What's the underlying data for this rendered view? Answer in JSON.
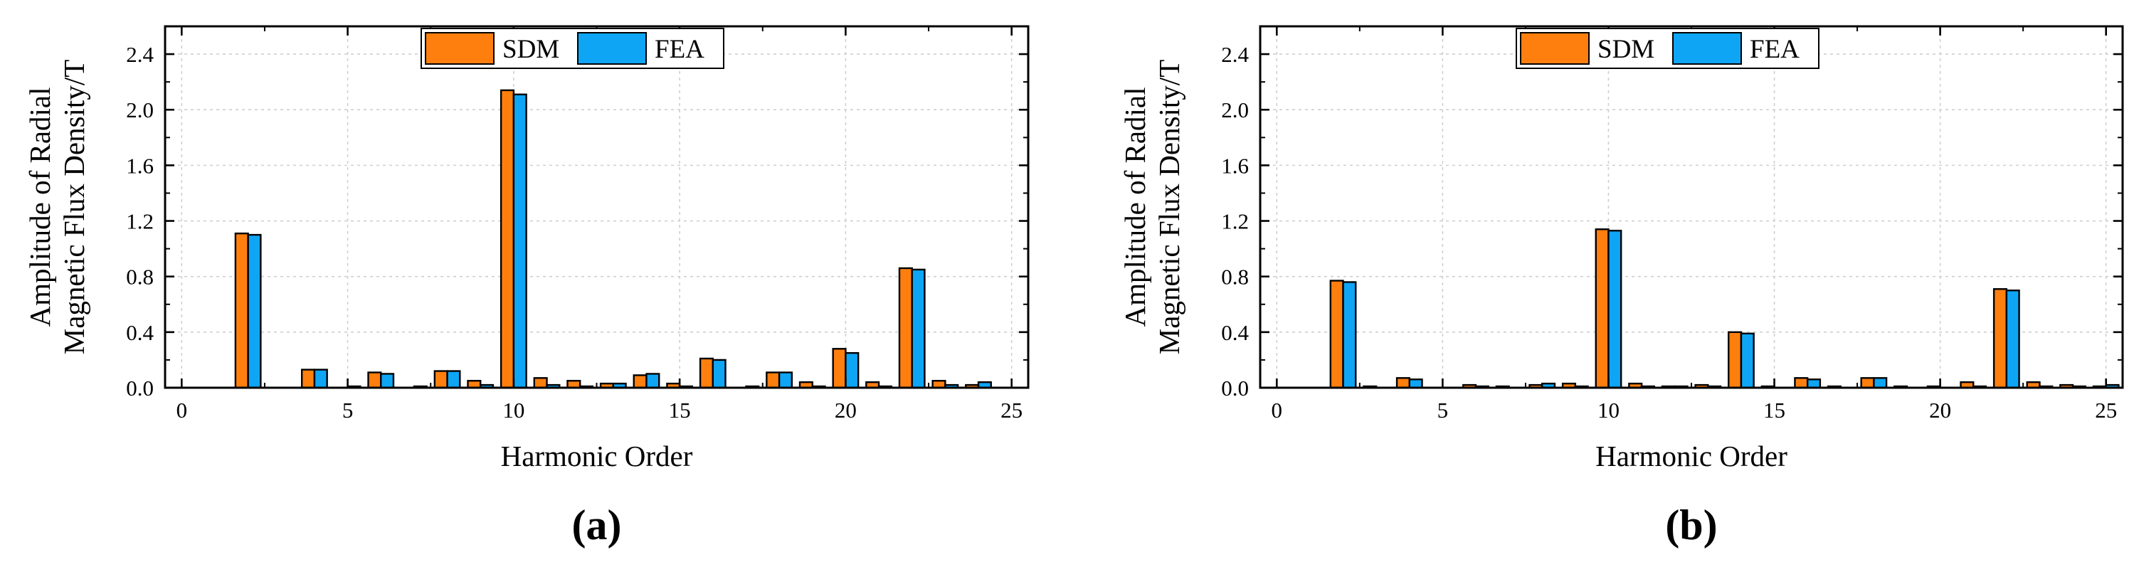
{
  "colors": {
    "sdm": "#FF7F0E",
    "fea": "#0EA5F5",
    "edge": "#000000",
    "grid": "#CFCFCF"
  },
  "chart_data": [
    {
      "type": "bar",
      "panel_label": "(a)",
      "title": "",
      "xlabel": "Harmonic Order",
      "ylabel": [
        "Amplitude of Radial",
        "Magnetic Flux Density/T"
      ],
      "xlim": [
        -0.5,
        25.5
      ],
      "ylim": [
        0,
        2.6
      ],
      "xticks": [
        0,
        5,
        10,
        15,
        20,
        25
      ],
      "xtick_labels": [
        "0",
        "5",
        "10",
        "15",
        "20",
        "25"
      ],
      "yticks": [
        0.0,
        0.4,
        0.8,
        1.2,
        1.6,
        2.0,
        2.4
      ],
      "ytick_labels": [
        "0.0",
        "0.4",
        "0.8",
        "1.2",
        "1.6",
        "2.0",
        "2.4"
      ],
      "grid": true,
      "legend": {
        "position": "top-center",
        "entries": [
          "SDM",
          "FEA"
        ]
      },
      "x": [
        1,
        2,
        3,
        4,
        5,
        6,
        7,
        8,
        9,
        10,
        11,
        12,
        13,
        14,
        15,
        16,
        17,
        18,
        19,
        20,
        21,
        22,
        23,
        24,
        25
      ],
      "series": [
        {
          "name": "SDM",
          "values": [
            0.0,
            1.11,
            0.0,
            0.13,
            0.0,
            0.11,
            0.0,
            0.12,
            0.05,
            2.14,
            0.07,
            0.05,
            0.03,
            0.09,
            0.03,
            0.21,
            0.0,
            0.11,
            0.04,
            0.28,
            0.04,
            0.86,
            0.05,
            0.02,
            0.0
          ]
        },
        {
          "name": "FEA",
          "values": [
            0.0,
            1.1,
            0.0,
            0.13,
            0.01,
            0.1,
            0.01,
            0.12,
            0.02,
            2.11,
            0.02,
            0.01,
            0.03,
            0.1,
            0.01,
            0.2,
            0.01,
            0.11,
            0.01,
            0.25,
            0.01,
            0.85,
            0.02,
            0.04,
            0.0
          ]
        }
      ]
    },
    {
      "type": "bar",
      "panel_label": "(b)",
      "title": "",
      "xlabel": "Harmonic Order",
      "ylabel": [
        "Amplitude of Radial",
        "Magnetic Flux Density/T"
      ],
      "xlim": [
        -0.5,
        25.5
      ],
      "ylim": [
        0,
        2.6
      ],
      "xticks": [
        0,
        5,
        10,
        15,
        20,
        25
      ],
      "xtick_labels": [
        "0",
        "5",
        "10",
        "15",
        "20",
        "25"
      ],
      "yticks": [
        0.0,
        0.4,
        0.8,
        1.2,
        1.6,
        2.0,
        2.4
      ],
      "ytick_labels": [
        "0.0",
        "0.4",
        "0.8",
        "1.2",
        "1.6",
        "2.0",
        "2.4"
      ],
      "grid": true,
      "legend": {
        "position": "top-center",
        "entries": [
          "SDM",
          "FEA"
        ]
      },
      "x": [
        1,
        2,
        3,
        4,
        5,
        6,
        7,
        8,
        9,
        10,
        11,
        12,
        13,
        14,
        15,
        16,
        17,
        18,
        19,
        20,
        21,
        22,
        23,
        24,
        25
      ],
      "series": [
        {
          "name": "SDM",
          "values": [
            0.0,
            0.77,
            0.01,
            0.07,
            0.0,
            0.02,
            0.01,
            0.02,
            0.03,
            1.14,
            0.03,
            0.01,
            0.02,
            0.4,
            0.01,
            0.07,
            0.01,
            0.07,
            0.01,
            0.01,
            0.04,
            0.71,
            0.04,
            0.02,
            0.01
          ]
        },
        {
          "name": "FEA",
          "values": [
            0.0,
            0.76,
            0.0,
            0.06,
            0.0,
            0.01,
            0.0,
            0.03,
            0.01,
            1.13,
            0.01,
            0.01,
            0.01,
            0.39,
            0.0,
            0.06,
            0.0,
            0.07,
            0.0,
            0.0,
            0.01,
            0.7,
            0.01,
            0.01,
            0.02
          ]
        }
      ]
    }
  ]
}
